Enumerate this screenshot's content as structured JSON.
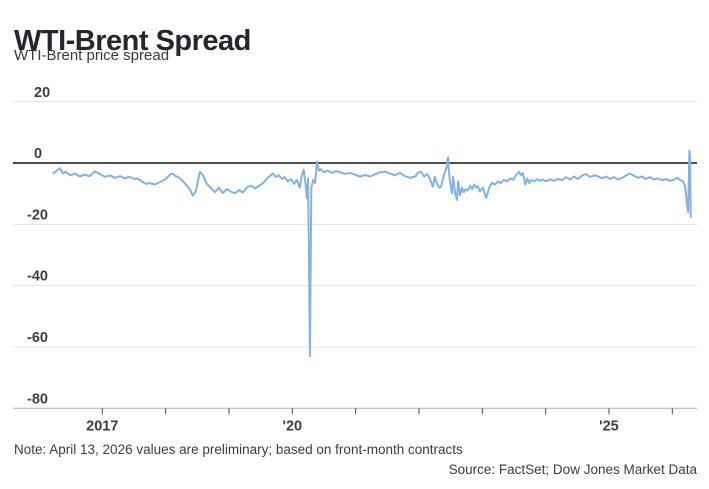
{
  "header": {
    "title": "WTI-Brent Spread",
    "subtitle": "WTI-Brent price spread"
  },
  "footer": {
    "note": "Note: April 13, 2026 values are preliminary; based on front-month contracts",
    "source": "Source: FactSet; Dow Jones Market Data"
  },
  "colors": {
    "line": "#85b2e0",
    "zero_line": "#141414",
    "gridline": "#e4e4e4",
    "bottom_axis": "#b0b0b0",
    "tick": "#4a4a4a",
    "axis_label": "#3f3f3f"
  },
  "chart_data": {
    "type": "line",
    "title": "WTI-Brent Spread",
    "subtitle": "WTI-Brent price spread",
    "xlabel": "",
    "ylabel": "",
    "ylim": [
      -80,
      20
    ],
    "xlim": [
      2015.59,
      2026.39
    ],
    "grid": true,
    "legend": false,
    "y_ticks": [
      20,
      0,
      -20,
      -40,
      -60,
      -80
    ],
    "x_ticks": [
      {
        "year": 2017,
        "label": "2017"
      },
      {
        "year": 2018,
        "label": ""
      },
      {
        "year": 2019,
        "label": ""
      },
      {
        "year": 2020,
        "label": "'20"
      },
      {
        "year": 2021,
        "label": ""
      },
      {
        "year": 2022,
        "label": ""
      },
      {
        "year": 2023,
        "label": ""
      },
      {
        "year": 2024,
        "label": ""
      },
      {
        "year": 2025,
        "label": "'25"
      },
      {
        "year": 2026,
        "label": ""
      }
    ],
    "series": [
      {
        "name": "WTI-Brent price spread",
        "points": [
          [
            2016.23,
            -3.3
          ],
          [
            2016.28,
            -2.5
          ],
          [
            2016.33,
            -1.7
          ],
          [
            2016.38,
            -3.4
          ],
          [
            2016.42,
            -2.8
          ],
          [
            2016.49,
            -4.0
          ],
          [
            2016.57,
            -3.4
          ],
          [
            2016.64,
            -4.4
          ],
          [
            2016.72,
            -3.8
          ],
          [
            2016.8,
            -4.3
          ],
          [
            2016.88,
            -2.7
          ],
          [
            2016.96,
            -3.5
          ],
          [
            2017.04,
            -4.5
          ],
          [
            2017.12,
            -4.1
          ],
          [
            2017.2,
            -4.8
          ],
          [
            2017.28,
            -4.3
          ],
          [
            2017.36,
            -5.0
          ],
          [
            2017.43,
            -4.5
          ],
          [
            2017.51,
            -5.2
          ],
          [
            2017.56,
            -5.0
          ],
          [
            2017.62,
            -6.0
          ],
          [
            2017.69,
            -6.8
          ],
          [
            2017.75,
            -6.5
          ],
          [
            2017.83,
            -7.0
          ],
          [
            2017.91,
            -6.2
          ],
          [
            2017.99,
            -5.4
          ],
          [
            2018.07,
            -3.8
          ],
          [
            2018.11,
            -3.4
          ],
          [
            2018.16,
            -4.3
          ],
          [
            2018.22,
            -4.8
          ],
          [
            2018.3,
            -6.5
          ],
          [
            2018.38,
            -8.5
          ],
          [
            2018.43,
            -10.7
          ],
          [
            2018.48,
            -9.0
          ],
          [
            2018.54,
            -2.9
          ],
          [
            2018.59,
            -4.0
          ],
          [
            2018.65,
            -6.8
          ],
          [
            2018.71,
            -8.0
          ],
          [
            2018.78,
            -9.5
          ],
          [
            2018.84,
            -8.0
          ],
          [
            2018.9,
            -9.8
          ],
          [
            2018.97,
            -8.5
          ],
          [
            2019.03,
            -9.3
          ],
          [
            2019.09,
            -9.9
          ],
          [
            2019.16,
            -8.8
          ],
          [
            2019.22,
            -9.6
          ],
          [
            2019.28,
            -8.0
          ],
          [
            2019.35,
            -7.3
          ],
          [
            2019.41,
            -8.3
          ],
          [
            2019.47,
            -7.5
          ],
          [
            2019.54,
            -6.5
          ],
          [
            2019.6,
            -5.0
          ],
          [
            2019.65,
            -4.2
          ],
          [
            2019.69,
            -3.4
          ],
          [
            2019.74,
            -4.5
          ],
          [
            2019.79,
            -4.0
          ],
          [
            2019.84,
            -5.2
          ],
          [
            2019.88,
            -4.6
          ],
          [
            2019.93,
            -6.0
          ],
          [
            2019.98,
            -5.2
          ],
          [
            2020.03,
            -6.8
          ],
          [
            2020.07,
            -5.5
          ],
          [
            2020.12,
            -8.0
          ],
          [
            2020.15,
            -4.0
          ],
          [
            2020.18,
            -2.2
          ],
          [
            2020.21,
            -7.0
          ],
          [
            2020.23,
            -11.5
          ],
          [
            2020.25,
            -5.0
          ],
          [
            2020.28,
            -63.0
          ],
          [
            2020.3,
            -8.0
          ],
          [
            2020.33,
            -5.5
          ],
          [
            2020.36,
            -6.5
          ],
          [
            2020.39,
            0.5
          ],
          [
            2020.42,
            -2.5
          ],
          [
            2020.45,
            -2.0
          ],
          [
            2020.5,
            -3.0
          ],
          [
            2020.56,
            -2.5
          ],
          [
            2020.63,
            -3.2
          ],
          [
            2020.69,
            -2.6
          ],
          [
            2020.75,
            -3.0
          ],
          [
            2020.83,
            -3.5
          ],
          [
            2020.91,
            -3.2
          ],
          [
            2020.99,
            -3.8
          ],
          [
            2021.07,
            -4.4
          ],
          [
            2021.15,
            -3.9
          ],
          [
            2021.23,
            -4.4
          ],
          [
            2021.31,
            -3.6
          ],
          [
            2021.39,
            -3.0
          ],
          [
            2021.46,
            -2.8
          ],
          [
            2021.54,
            -3.4
          ],
          [
            2021.62,
            -4.0
          ],
          [
            2021.7,
            -3.2
          ],
          [
            2021.78,
            -4.3
          ],
          [
            2021.86,
            -4.8
          ],
          [
            2021.94,
            -4.4
          ],
          [
            2021.98,
            -3.2
          ],
          [
            2022.03,
            -2.8
          ],
          [
            2022.08,
            -4.4
          ],
          [
            2022.13,
            -3.6
          ],
          [
            2022.17,
            -5.0
          ],
          [
            2022.22,
            -7.7
          ],
          [
            2022.25,
            -4.5
          ],
          [
            2022.28,
            -6.5
          ],
          [
            2022.32,
            -8.0
          ],
          [
            2022.35,
            -7.7
          ],
          [
            2022.38,
            -5.0
          ],
          [
            2022.41,
            -3.0
          ],
          [
            2022.44,
            -1.0
          ],
          [
            2022.46,
            1.8
          ],
          [
            2022.47,
            -2.0
          ],
          [
            2022.49,
            -6.0
          ],
          [
            2022.52,
            -9.8
          ],
          [
            2022.54,
            -4.5
          ],
          [
            2022.57,
            -9.8
          ],
          [
            2022.6,
            -12.0
          ],
          [
            2022.62,
            -6.0
          ],
          [
            2022.65,
            -10.5
          ],
          [
            2022.68,
            -8.0
          ],
          [
            2022.71,
            -9.5
          ],
          [
            2022.74,
            -8.5
          ],
          [
            2022.77,
            -9.0
          ],
          [
            2022.81,
            -7.5
          ],
          [
            2022.84,
            -8.5
          ],
          [
            2022.87,
            -7.0
          ],
          [
            2022.9,
            -8.0
          ],
          [
            2022.93,
            -7.5
          ],
          [
            2022.96,
            -9.3
          ],
          [
            2023.01,
            -8.0
          ],
          [
            2023.06,
            -11.4
          ],
          [
            2023.11,
            -8.0
          ],
          [
            2023.15,
            -6.5
          ],
          [
            2023.2,
            -7.0
          ],
          [
            2023.25,
            -6.0
          ],
          [
            2023.29,
            -6.5
          ],
          [
            2023.34,
            -5.5
          ],
          [
            2023.39,
            -6.0
          ],
          [
            2023.44,
            -5.0
          ],
          [
            2023.49,
            -5.5
          ],
          [
            2023.53,
            -4.0
          ],
          [
            2023.58,
            -2.8
          ],
          [
            2023.61,
            -4.0
          ],
          [
            2023.64,
            -3.2
          ],
          [
            2023.68,
            -7.0
          ],
          [
            2023.71,
            -5.0
          ],
          [
            2023.74,
            -6.5
          ],
          [
            2023.77,
            -5.5
          ],
          [
            2023.82,
            -6.0
          ],
          [
            2023.87,
            -5.2
          ],
          [
            2023.91,
            -5.8
          ],
          [
            2023.96,
            -5.4
          ],
          [
            2024.01,
            -6.0
          ],
          [
            2024.07,
            -5.3
          ],
          [
            2024.13,
            -5.8
          ],
          [
            2024.2,
            -5.2
          ],
          [
            2024.26,
            -5.6
          ],
          [
            2024.32,
            -4.6
          ],
          [
            2024.39,
            -5.4
          ],
          [
            2024.45,
            -4.4
          ],
          [
            2024.51,
            -5.2
          ],
          [
            2024.58,
            -4.0
          ],
          [
            2024.64,
            -3.6
          ],
          [
            2024.7,
            -4.6
          ],
          [
            2024.77,
            -4.0
          ],
          [
            2024.83,
            -4.4
          ],
          [
            2024.89,
            -5.0
          ],
          [
            2024.95,
            -4.4
          ],
          [
            2025.02,
            -5.2
          ],
          [
            2025.08,
            -4.6
          ],
          [
            2025.14,
            -5.4
          ],
          [
            2025.21,
            -4.8
          ],
          [
            2025.27,
            -4.0
          ],
          [
            2025.33,
            -3.4
          ],
          [
            2025.4,
            -4.2
          ],
          [
            2025.46,
            -4.8
          ],
          [
            2025.52,
            -4.4
          ],
          [
            2025.58,
            -5.2
          ],
          [
            2025.65,
            -4.6
          ],
          [
            2025.71,
            -5.4
          ],
          [
            2025.77,
            -5.0
          ],
          [
            2025.84,
            -5.6
          ],
          [
            2025.9,
            -5.2
          ],
          [
            2025.96,
            -5.8
          ],
          [
            2026.03,
            -5.4
          ],
          [
            2026.08,
            -4.8
          ],
          [
            2026.12,
            -5.5
          ],
          [
            2026.17,
            -6.0
          ],
          [
            2026.2,
            -7.5
          ],
          [
            2026.23,
            -13.0
          ],
          [
            2026.25,
            -16.0
          ],
          [
            2026.27,
            4.0
          ],
          [
            2026.28,
            2.5
          ],
          [
            2026.29,
            -17.5
          ]
        ]
      }
    ]
  }
}
